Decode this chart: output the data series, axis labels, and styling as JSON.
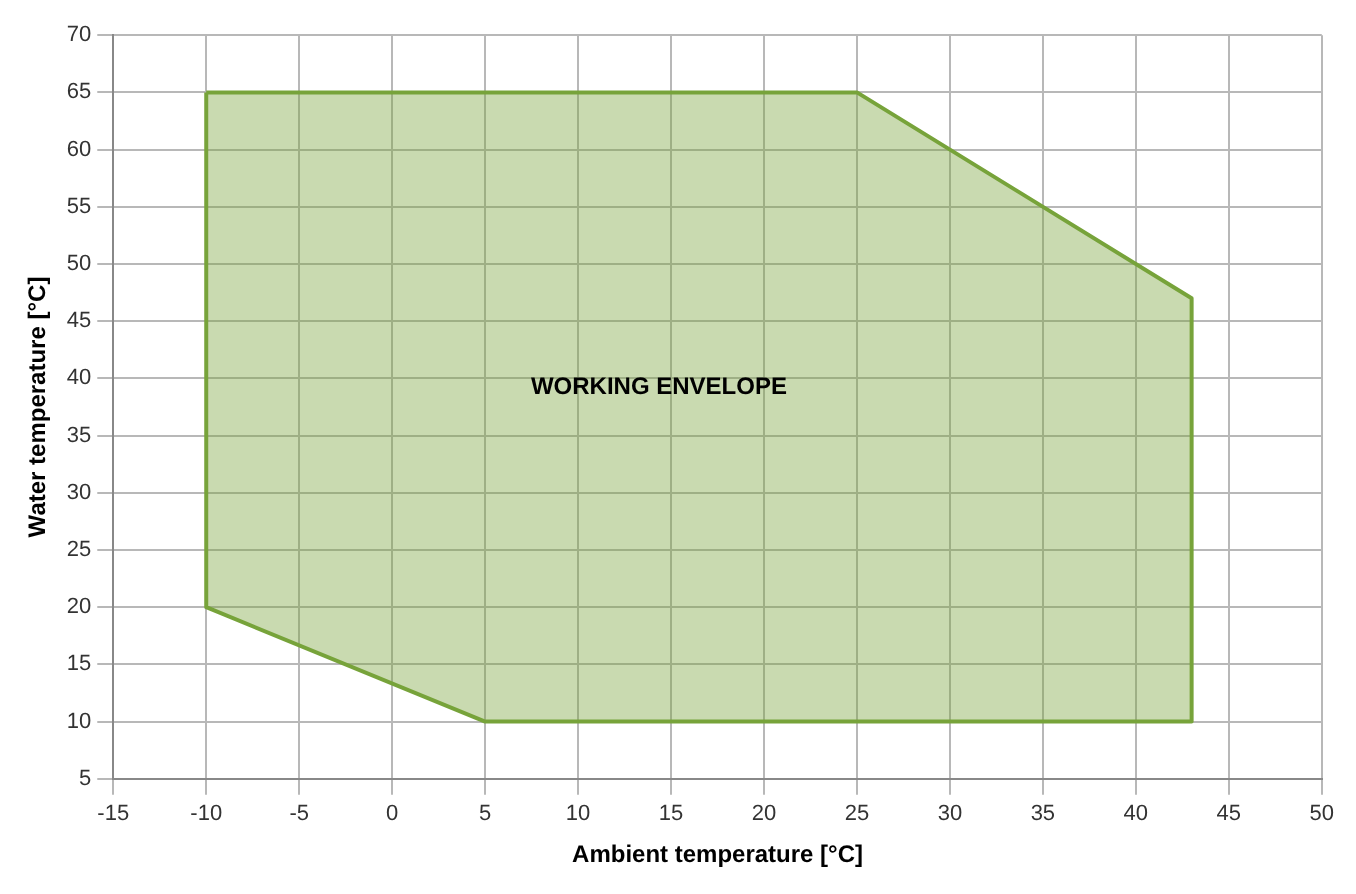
{
  "chart_data": {
    "type": "area",
    "xlabel": "Ambient temperature [°C]",
    "ylabel": "Water temperature [°C]",
    "series": [
      {
        "color": "#77a33a",
        "x": [
          -10,
          25,
          43,
          43,
          5,
          -10,
          -10
        ],
        "values": [
          65,
          65,
          47,
          10,
          10,
          20,
          65
        ]
      }
    ],
    "annotations": [
      "WORKING ENVELOPE"
    ],
    "xlim": [
      -15,
      50
    ],
    "xticks": [
      -15,
      -10,
      -5,
      0,
      5,
      10,
      15,
      20,
      25,
      30,
      35,
      40,
      45,
      50
    ],
    "ylim": [
      5,
      70
    ],
    "yticks": [
      5,
      10,
      15,
      20,
      25,
      30,
      35,
      40,
      45,
      50,
      55,
      60,
      65,
      70
    ],
    "grid": true,
    "legend": false,
    "marker": "none",
    "line_style": "solid"
  }
}
